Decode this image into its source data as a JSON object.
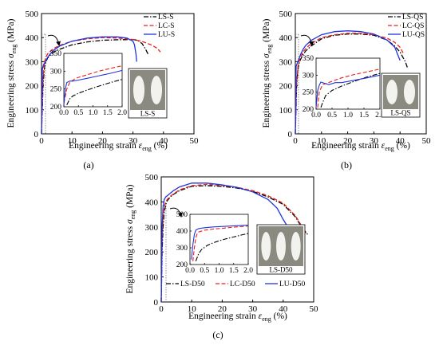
{
  "chart_data": [
    {
      "type": "line",
      "panel_label": "(a)",
      "xlabel": "Engineering strain ε_eng (%)",
      "ylabel": "Engineering stress σ_eng (MPa)",
      "xlim": [
        0,
        50
      ],
      "ylim": [
        0,
        500
      ],
      "xticks": [
        0,
        10,
        20,
        30,
        40,
        50
      ],
      "yticks": [
        0,
        100,
        200,
        300,
        400,
        500
      ],
      "legend_position": "top-right",
      "grid": false,
      "series": [
        {
          "name": "LS-S",
          "color": "#000000",
          "dash": "dashdot",
          "x": [
            0,
            0.5,
            1,
            1.5,
            2,
            3,
            4,
            6,
            10,
            15,
            20,
            25,
            30,
            31,
            32,
            33,
            34,
            35
          ],
          "y": [
            0,
            200,
            280,
            300,
            315,
            330,
            340,
            352,
            370,
            382,
            389,
            391,
            392,
            390,
            385,
            375,
            355,
            330
          ]
        },
        {
          "name": "LC-S",
          "color": "#e8201c",
          "dash": "dash",
          "x": [
            0,
            0.5,
            1,
            1.5,
            2,
            3,
            4,
            6,
            10,
            15,
            20,
            25,
            30,
            33,
            36,
            38,
            39
          ],
          "y": [
            0,
            230,
            300,
            320,
            332,
            345,
            355,
            368,
            385,
            395,
            400,
            398,
            392,
            384,
            370,
            355,
            340
          ]
        },
        {
          "name": "LU-S",
          "color": "#2233dd",
          "dash": "solid",
          "x": [
            0,
            0.3,
            0.6,
            1,
            1.5,
            2,
            3,
            4,
            6,
            10,
            15,
            20,
            25,
            28,
            30,
            30.5,
            31,
            31.2
          ],
          "y": [
            0,
            270,
            285,
            295,
            305,
            318,
            335,
            348,
            365,
            385,
            398,
            403,
            403,
            398,
            385,
            370,
            330,
            300
          ]
        }
      ],
      "inset": {
        "xlim": [
          0,
          2
        ],
        "ylim": [
          200,
          350
        ],
        "xticks": [
          "0.0",
          "0.5",
          "1.0",
          "1.5",
          "2.0"
        ],
        "yticks": [
          200,
          250,
          300,
          350
        ],
        "series": [
          {
            "name": "LS-S",
            "x": [
              0.1,
              0.2,
              0.3,
              0.5,
              0.8,
              1.2,
              1.6,
              2.0
            ],
            "y": [
              205,
              222,
              230,
              238,
              247,
              258,
              268,
              277
            ]
          },
          {
            "name": "LC-S",
            "x": [
              0.0,
              0.1,
              0.2,
              0.4,
              0.8,
              1.2,
              1.6,
              2.0
            ],
            "y": [
              210,
              250,
              268,
              280,
              290,
              300,
              308,
              315
            ]
          },
          {
            "name": "LU-S",
            "x": [
              0.0,
              0.05,
              0.1,
              0.2,
              0.3,
              0.5,
              0.8,
              1.2,
              1.6,
              2.0
            ],
            "y": [
              205,
              250,
              268,
              272,
              272,
              275,
              280,
              287,
              294,
              302
            ]
          }
        ]
      },
      "specimen_label": "LS-S"
    },
    {
      "type": "line",
      "panel_label": "(b)",
      "xlabel": "Engineering strain ε_eng (%)",
      "ylabel": "Engineering stress σ_eng (MPa)",
      "xlim": [
        0,
        50
      ],
      "ylim": [
        0,
        500
      ],
      "xticks": [
        0,
        10,
        20,
        30,
        40,
        50
      ],
      "yticks": [
        0,
        100,
        200,
        300,
        400,
        500
      ],
      "legend_position": "top-right",
      "grid": false,
      "series": [
        {
          "name": "LS-QS",
          "color": "#000000",
          "dash": "dashdot",
          "x": [
            0,
            0.5,
            1,
            1.5,
            2,
            3,
            4,
            6,
            10,
            15,
            20,
            25,
            30,
            35,
            38,
            40,
            42,
            43
          ],
          "y": [
            0,
            200,
            270,
            295,
            310,
            330,
            345,
            365,
            395,
            410,
            415,
            415,
            410,
            390,
            365,
            340,
            300,
            270
          ]
        },
        {
          "name": "LC-QS",
          "color": "#e8201c",
          "dash": "dash",
          "x": [
            0,
            0.5,
            1,
            1.5,
            2,
            3,
            4,
            6,
            10,
            15,
            20,
            25,
            30,
            35,
            38,
            40,
            41.5
          ],
          "y": [
            0,
            210,
            280,
            305,
            320,
            340,
            355,
            375,
            400,
            412,
            418,
            418,
            412,
            398,
            380,
            360,
            330
          ]
        },
        {
          "name": "LU-QS",
          "color": "#2233dd",
          "dash": "solid",
          "x": [
            0,
            0.3,
            0.6,
            1,
            1.5,
            2,
            3,
            4,
            6,
            10,
            15,
            20,
            25,
            30,
            35,
            38,
            40
          ],
          "y": [
            0,
            280,
            290,
            300,
            315,
            330,
            352,
            368,
            388,
            412,
            425,
            428,
            425,
            415,
            390,
            360,
            305
          ]
        }
      ],
      "inset": {
        "xlim": [
          0,
          2
        ],
        "ylim": [
          200,
          350
        ],
        "xticks": [
          "0.0",
          "0.5",
          "1.0",
          "1.5",
          "2.0"
        ],
        "yticks": [
          200,
          250,
          300,
          350
        ],
        "series": [
          {
            "name": "LS-QS",
            "x": [
              0.15,
              0.2,
              0.3,
              0.5,
              0.8,
              1.2,
              1.6,
              2.0
            ],
            "y": [
              205,
              218,
              240,
              255,
              268,
              282,
              295,
              305
            ]
          },
          {
            "name": "LC-QS",
            "x": [
              0.05,
              0.1,
              0.2,
              0.3,
              0.5,
              0.8,
              1.2,
              1.6,
              2.0
            ],
            "y": [
              205,
              250,
              272,
              275,
              282,
              292,
              302,
              310,
              318
            ]
          },
          {
            "name": "LU-QS",
            "x": [
              0.0,
              0.05,
              0.1,
              0.15,
              0.2,
              0.3,
              0.4,
              0.6,
              0.8,
              1.2,
              1.6,
              2.0
            ],
            "y": [
              205,
              255,
              270,
              280,
              278,
              275,
              272,
              278,
              278,
              285,
              292,
              300
            ]
          }
        ]
      },
      "specimen_label": "LS-QS"
    },
    {
      "type": "line",
      "panel_label": "(c)",
      "xlabel": "Engineering strain ε_eng (%)",
      "ylabel": "Engineering stress σ_eng (MPa)",
      "xlim": [
        0,
        50
      ],
      "ylim": [
        0,
        500
      ],
      "xticks": [
        0,
        10,
        20,
        30,
        40,
        50
      ],
      "yticks": [
        0,
        100,
        200,
        300,
        400,
        500
      ],
      "legend_position": "bottom-left",
      "grid": false,
      "series": [
        {
          "name": "LS-D50",
          "color": "#000000",
          "dash": "dashdot",
          "x": [
            0,
            0.3,
            0.6,
            1,
            1.5,
            2,
            3,
            4,
            6,
            10,
            15,
            20,
            25,
            30,
            35,
            40,
            44,
            46,
            48
          ],
          "y": [
            0,
            200,
            300,
            360,
            390,
            405,
            420,
            430,
            445,
            462,
            465,
            462,
            455,
            442,
            420,
            390,
            340,
            300,
            270
          ]
        },
        {
          "name": "LC-D50",
          "color": "#e8201c",
          "dash": "dash",
          "x": [
            0,
            0.3,
            0.6,
            1,
            1.5,
            2,
            3,
            4,
            6,
            10,
            15,
            20,
            25,
            30,
            35,
            40,
            44,
            46,
            47.5
          ],
          "y": [
            0,
            250,
            330,
            380,
            400,
            410,
            423,
            432,
            448,
            465,
            470,
            466,
            458,
            445,
            425,
            395,
            345,
            305,
            275
          ]
        },
        {
          "name": "LU-D50",
          "color": "#2233dd",
          "dash": "solid",
          "x": [
            0,
            0.3,
            0.6,
            1,
            1.5,
            2,
            3,
            4,
            6,
            10,
            15,
            20,
            25,
            30,
            35,
            38,
            40,
            42
          ],
          "y": [
            0,
            300,
            380,
            410,
            420,
            425,
            435,
            445,
            460,
            475,
            475,
            468,
            458,
            440,
            410,
            375,
            330,
            290
          ]
        }
      ],
      "inset": {
        "xlim": [
          0,
          2
        ],
        "ylim": [
          200,
          500
        ],
        "xticks": [
          "0.0",
          "0.5",
          "1.0",
          "1.5",
          "2.0"
        ],
        "yticks": [
          200,
          300,
          400,
          500
        ],
        "series": [
          {
            "name": "LS-D50",
            "x": [
              0.2,
              0.3,
              0.4,
              0.6,
              0.8,
              1.0,
              1.2,
              1.5,
              1.8,
              2.0
            ],
            "y": [
              220,
              265,
              290,
              315,
              330,
              342,
              352,
              365,
              378,
              385
            ]
          },
          {
            "name": "LC-D50",
            "x": [
              0.1,
              0.15,
              0.2,
              0.25,
              0.3,
              0.5,
              0.8,
              1.2,
              1.6,
              2.0
            ],
            "y": [
              220,
              300,
              360,
              385,
              395,
              405,
              412,
              418,
              425,
              430
            ]
          },
          {
            "name": "LU-D50",
            "x": [
              0.05,
              0.1,
              0.15,
              0.2,
              0.3,
              0.5,
              0.8,
              1.2,
              1.6,
              2.0
            ],
            "y": [
              230,
              320,
              380,
              405,
              415,
              420,
              425,
              428,
              432,
              435
            ]
          }
        ]
      },
      "specimen_label": "LS-D50"
    }
  ],
  "style": {
    "ls_color": "#000000",
    "lc_color": "#e8201c",
    "lu_color": "#2233dd",
    "photo_bg": "#8a8a80"
  }
}
